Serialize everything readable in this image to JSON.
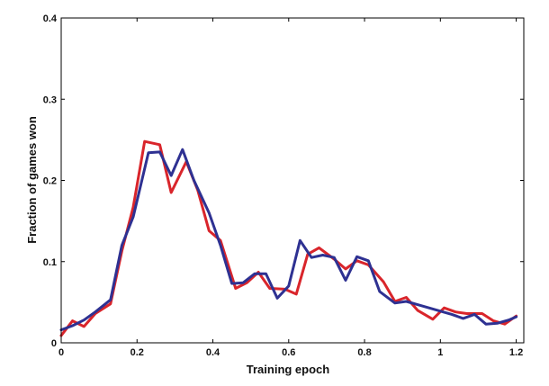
{
  "chart_data": {
    "type": "line",
    "title": "",
    "xlabel": "Training epoch",
    "ylabel": "Fraction of games won",
    "xlim": [
      0,
      1.22
    ],
    "ylim": [
      0,
      0.4
    ],
    "xticks": [
      0,
      0.2,
      0.4,
      0.6,
      0.8,
      1,
      1.2
    ],
    "xtick_labels": [
      "0",
      "0.2",
      "0.4",
      "0.6",
      "0.8",
      "1",
      "1.2"
    ],
    "yticks": [
      0,
      0.1,
      0.2,
      0.3,
      0.4
    ],
    "ytick_labels": [
      "0",
      "0.1",
      "0.2",
      "0.3",
      "0.4"
    ],
    "grid": false,
    "legend": "none",
    "series": [
      {
        "color": "#d9252b",
        "x": [
          0,
          0.03,
          0.06,
          0.09,
          0.13,
          0.16,
          0.19,
          0.22,
          0.26,
          0.29,
          0.33,
          0.36,
          0.39,
          0.42,
          0.46,
          0.49,
          0.52,
          0.55,
          0.59,
          0.62,
          0.65,
          0.68,
          0.72,
          0.75,
          0.78,
          0.81,
          0.85,
          0.88,
          0.91,
          0.94,
          0.98,
          1.01,
          1.04,
          1.07,
          1.11,
          1.14,
          1.17,
          1.2
        ],
        "y": [
          0.009,
          0.027,
          0.02,
          0.036,
          0.048,
          0.113,
          0.167,
          0.248,
          0.244,
          0.185,
          0.223,
          0.188,
          0.138,
          0.126,
          0.067,
          0.074,
          0.087,
          0.067,
          0.066,
          0.06,
          0.109,
          0.117,
          0.103,
          0.091,
          0.101,
          0.096,
          0.075,
          0.051,
          0.056,
          0.04,
          0.029,
          0.043,
          0.038,
          0.036,
          0.036,
          0.027,
          0.023,
          0.033
        ]
      },
      {
        "color": "#2e3192",
        "x": [
          0,
          0.03,
          0.06,
          0.09,
          0.13,
          0.16,
          0.19,
          0.23,
          0.26,
          0.29,
          0.32,
          0.35,
          0.39,
          0.42,
          0.45,
          0.48,
          0.51,
          0.54,
          0.57,
          0.6,
          0.63,
          0.66,
          0.69,
          0.72,
          0.75,
          0.78,
          0.81,
          0.84,
          0.88,
          0.91,
          0.94,
          0.97,
          1.0,
          1.03,
          1.06,
          1.09,
          1.12,
          1.15,
          1.18,
          1.2
        ],
        "y": [
          0.016,
          0.021,
          0.028,
          0.038,
          0.053,
          0.12,
          0.155,
          0.234,
          0.235,
          0.206,
          0.238,
          0.2,
          0.16,
          0.12,
          0.073,
          0.074,
          0.085,
          0.085,
          0.055,
          0.07,
          0.126,
          0.105,
          0.108,
          0.105,
          0.077,
          0.106,
          0.101,
          0.063,
          0.049,
          0.051,
          0.047,
          0.043,
          0.039,
          0.035,
          0.03,
          0.035,
          0.023,
          0.024,
          0.028,
          0.032
        ]
      }
    ]
  }
}
